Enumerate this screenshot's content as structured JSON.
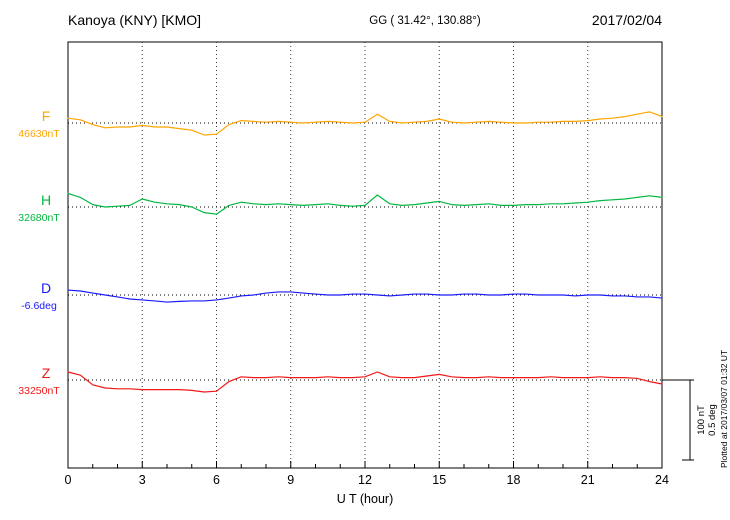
{
  "header": {
    "station": "Kanoya (KNY)  [KMO]",
    "coords": "GG ( 31.42°, 130.88°)",
    "date": "2017/02/04"
  },
  "axis": {
    "xlabel": "U T (hour)"
  },
  "scale_bar": {
    "nt_label": "100 nT",
    "deg_label": "0.5 deg"
  },
  "footnote": "Plotted at 2017/03/07 01:32 UT",
  "chart_data": {
    "type": "line",
    "title": "Kanoya (KNY) [KMO] magnetogram 2017/02/04",
    "xlabel": "U T (hour)",
    "xlim": [
      0,
      24
    ],
    "x_ticks": [
      0,
      3,
      6,
      9,
      12,
      15,
      18,
      21,
      24
    ],
    "x_step_hours": 0.5,
    "grid": "dotted vertical at 3h intervals, dotted horizontal at each component baseline",
    "scale": {
      "nT_per_division": 100,
      "deg_per_division": 0.5
    },
    "series": [
      {
        "name": "F",
        "unit": "nT",
        "baseline_value": 46630,
        "value_label": "46630nT",
        "color": "#ffa500",
        "delta_from_baseline": [
          6,
          4,
          -2,
          -6,
          -5,
          -5,
          -3,
          -5,
          -5,
          -7,
          -9,
          -15,
          -14,
          -2,
          3,
          2,
          1,
          2,
          1,
          0,
          1,
          2,
          1,
          0,
          1,
          11,
          2,
          0,
          1,
          2,
          5,
          1,
          0,
          1,
          2,
          1,
          0,
          0,
          1,
          1,
          2,
          2,
          3,
          5,
          6,
          8,
          11,
          14,
          8
        ]
      },
      {
        "name": "H",
        "unit": "nT",
        "baseline_value": 32680,
        "value_label": "32680nT",
        "color": "#00b840",
        "delta_from_baseline": [
          17,
          12,
          3,
          0,
          1,
          2,
          10,
          6,
          4,
          3,
          0,
          -7,
          -9,
          2,
          6,
          4,
          3,
          4,
          3,
          2,
          3,
          4,
          2,
          1,
          2,
          15,
          4,
          2,
          3,
          5,
          7,
          3,
          2,
          3,
          4,
          2,
          2,
          3,
          3,
          4,
          4,
          5,
          6,
          8,
          9,
          10,
          12,
          14,
          12
        ]
      },
      {
        "name": "D",
        "unit": "deg",
        "baseline_value": -6.6,
        "value_label": "-6.6deg",
        "color": "#1a1aff",
        "delta_from_baseline": [
          0.031,
          0.025,
          0.012,
          0,
          -0.012,
          -0.025,
          -0.031,
          -0.037,
          -0.044,
          -0.04,
          -0.037,
          -0.037,
          -0.031,
          -0.019,
          -0.006,
          0,
          0.012,
          0.019,
          0.019,
          0.012,
          0.006,
          0,
          0,
          0.006,
          0.006,
          0,
          -0.006,
          0,
          0.006,
          0.006,
          0,
          0,
          0.006,
          0.006,
          0,
          0,
          0.006,
          0.006,
          0,
          0,
          0,
          -0.006,
          0,
          0,
          -0.006,
          -0.006,
          -0.012,
          -0.012,
          -0.019
        ]
      },
      {
        "name": "Z",
        "unit": "nT",
        "baseline_value": 33250,
        "value_label": "33250nT",
        "color": "#f01818",
        "delta_from_baseline": [
          10,
          6,
          -6,
          -10,
          -11,
          -11,
          -12,
          -12,
          -12,
          -12,
          -13,
          -15,
          -14,
          -2,
          4,
          3,
          3,
          4,
          3,
          3,
          3,
          4,
          3,
          3,
          4,
          10,
          4,
          3,
          3,
          5,
          7,
          4,
          3,
          3,
          4,
          3,
          3,
          3,
          3,
          4,
          3,
          3,
          3,
          4,
          3,
          3,
          2,
          -2,
          -5
        ]
      }
    ]
  }
}
